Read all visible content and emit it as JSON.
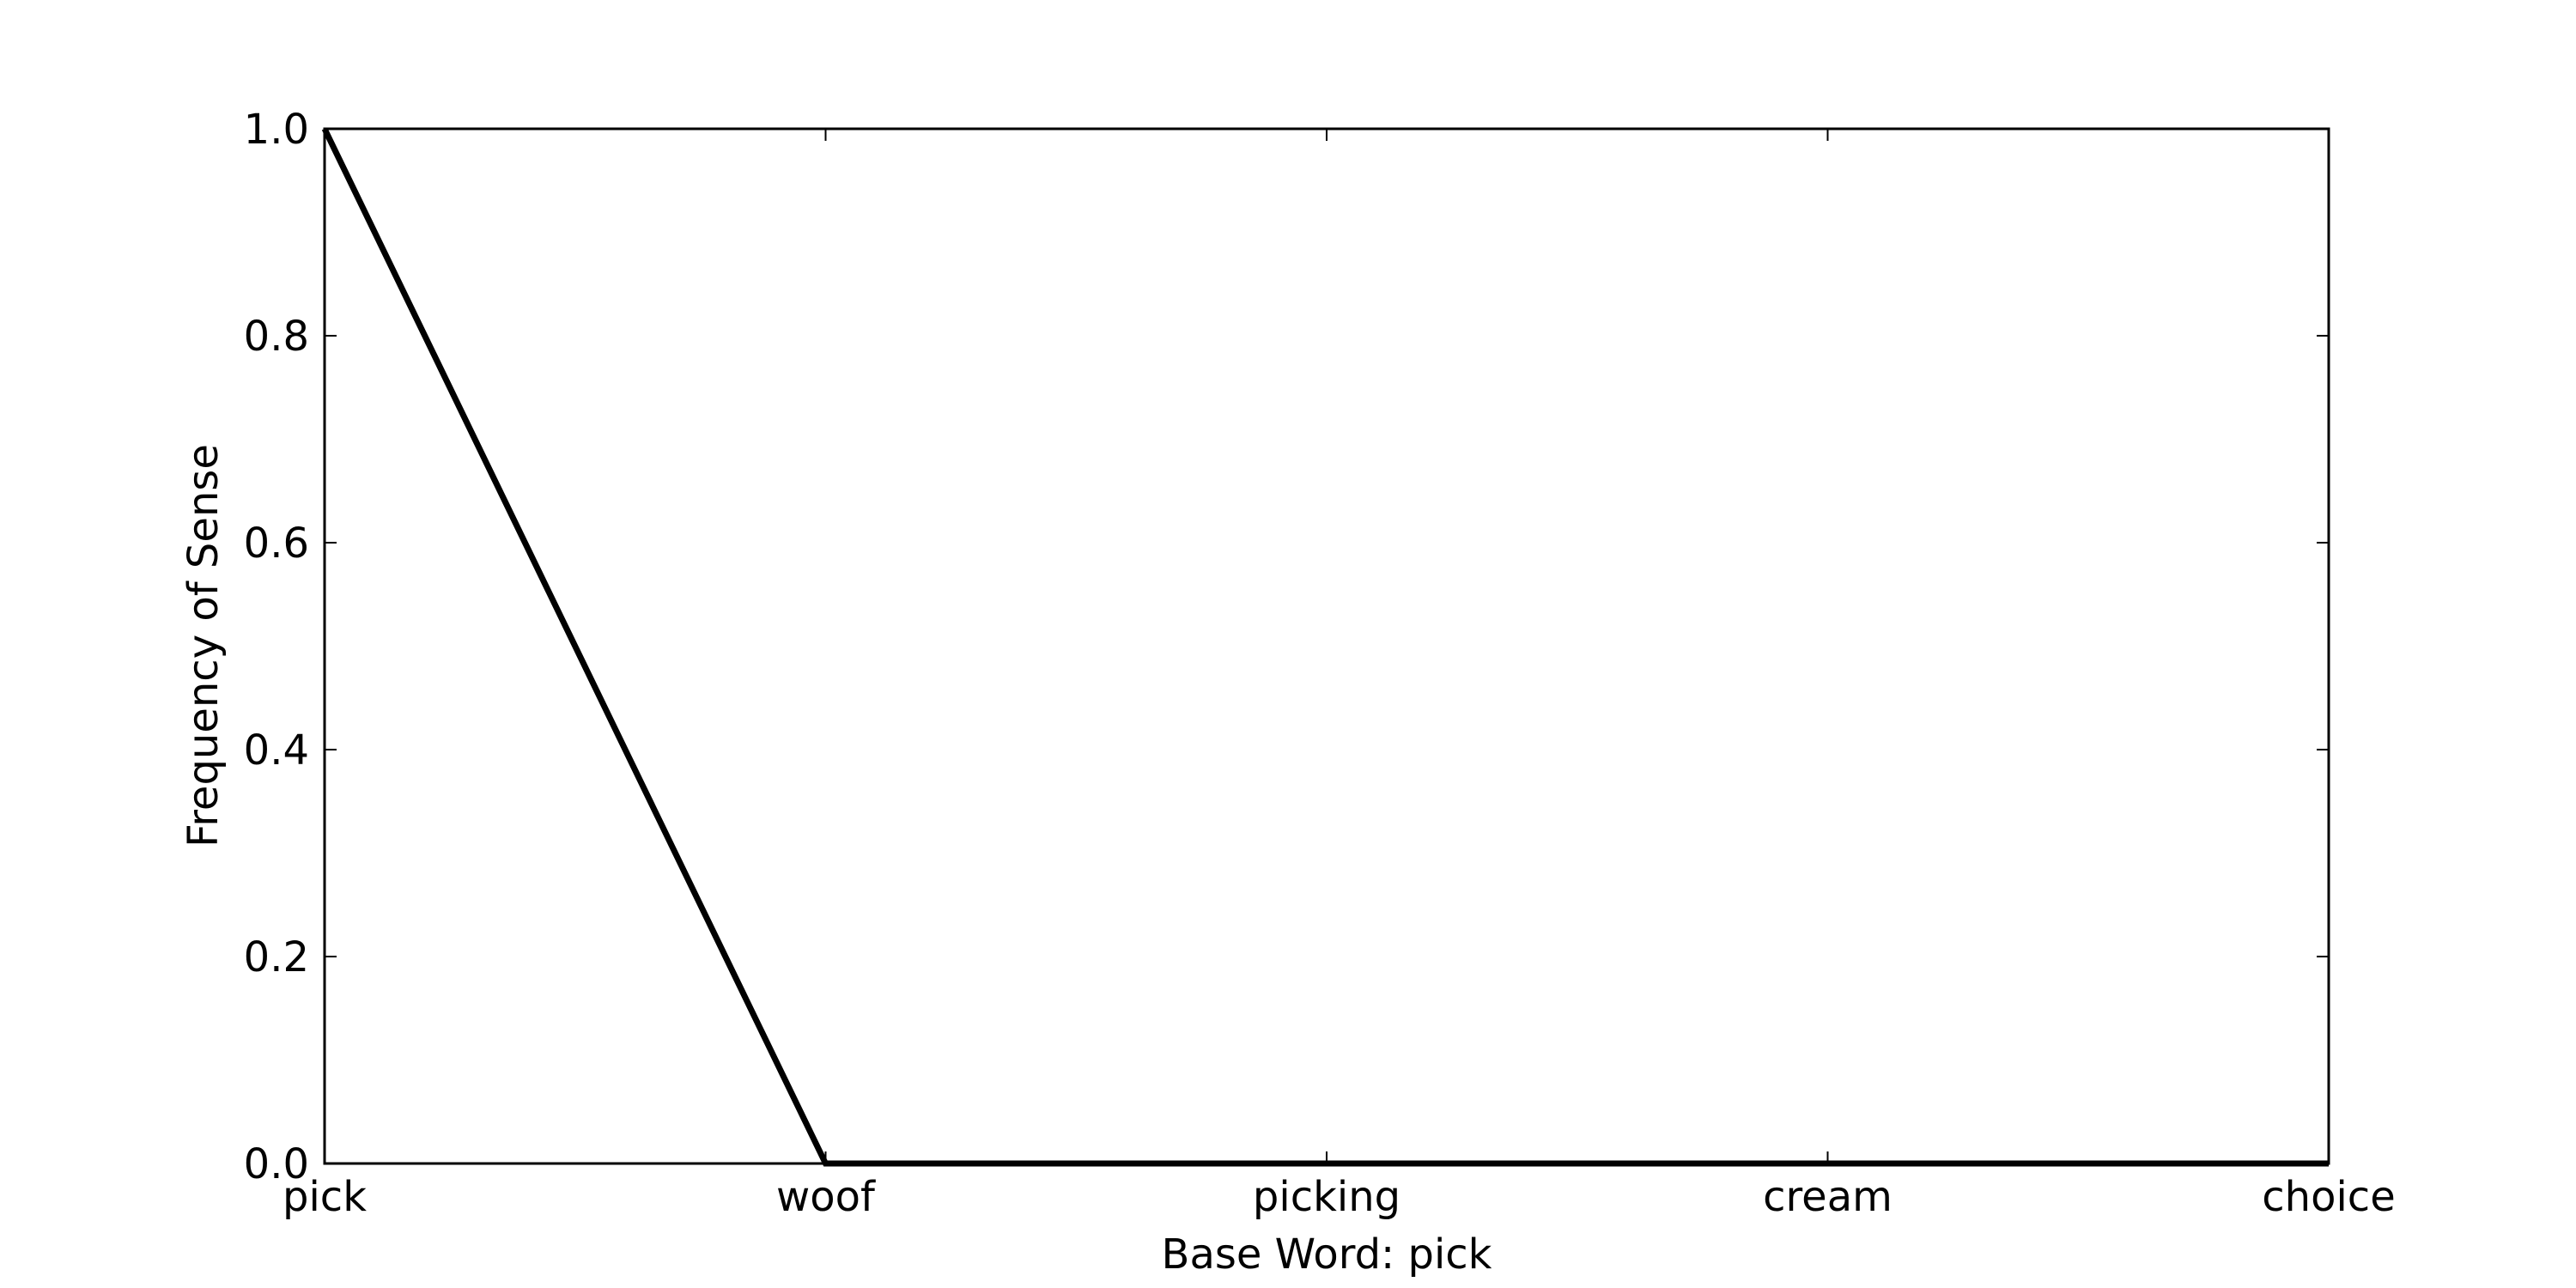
{
  "chart_data": {
    "type": "line",
    "title": "",
    "xlabel": "Base Word: pick",
    "ylabel": "Frequency of Sense",
    "categories": [
      "pick",
      "woof",
      "picking",
      "cream",
      "choice"
    ],
    "series": [
      {
        "values": [
          1.0,
          0.0,
          0.0,
          0.0,
          0.0
        ]
      }
    ],
    "ylim": [
      0.0,
      1.0
    ],
    "yticks": [
      "0.0",
      "0.2",
      "0.4",
      "0.6",
      "0.8",
      "1.0"
    ],
    "grid": false,
    "line_color": "#000000"
  }
}
